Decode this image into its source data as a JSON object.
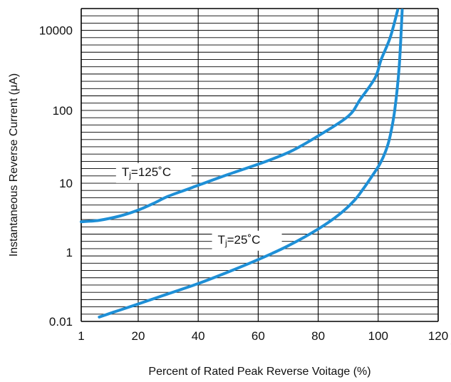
{
  "chart_data": {
    "type": "line",
    "title": "",
    "xlabel": "Percent of Rated Peak Reverse Voitage (%)",
    "ylabel": "Instantaneous Reverse Current (μA)",
    "x_ticks": [
      "1",
      "20",
      "40",
      "60",
      "80",
      "100",
      "120"
    ],
    "x_tick_values": [
      1,
      20,
      40,
      60,
      80,
      100,
      120
    ],
    "y_ticks": [
      "0.01",
      "1",
      "10",
      "100",
      "10000"
    ],
    "xlim": [
      1,
      120
    ],
    "y_tick_rows": [
      0,
      9.5,
      19,
      29,
      40
    ],
    "ylim_rows": [
      0,
      43
    ],
    "y_scale": "log",
    "grid": true,
    "background_watermark": "gray-ring-shape",
    "colors": {
      "series": "#1E8FD6",
      "grid": "#000000",
      "text": "#111111",
      "watermark": "#EFEFEF"
    },
    "annotations": [
      {
        "id": "tj125",
        "base": "T",
        "sub": "j",
        "tail": "=125˚C"
      },
      {
        "id": "tj25",
        "base": "T",
        "sub": "j",
        "tail": "=25˚C"
      }
    ],
    "series": [
      {
        "id": "tj125",
        "x": [
          1,
          7,
          14,
          20,
          25,
          30,
          38,
          50,
          62,
          71,
          80,
          90,
          94,
          99,
          101,
          104,
          106.5
        ],
        "y_row": [
          13.7,
          13.9,
          14.5,
          15.3,
          16.2,
          17.2,
          18.4,
          20.2,
          21.9,
          23.4,
          25.5,
          28.2,
          30.5,
          33.5,
          36.0,
          39.0,
          42.8
        ]
      },
      {
        "id": "tj25",
        "x": [
          7,
          12,
          20,
          30,
          40,
          50,
          60,
          70,
          80,
          87,
          92,
          95,
          98,
          100.5,
          102.5,
          104,
          105.5,
          107,
          108
        ],
        "y_row": [
          0.6,
          1.3,
          2.4,
          3.8,
          5.2,
          6.8,
          8.5,
          10.4,
          12.7,
          14.7,
          16.6,
          18.2,
          20.0,
          21.6,
          23.4,
          25.5,
          29.0,
          35.0,
          42.8
        ]
      }
    ]
  }
}
